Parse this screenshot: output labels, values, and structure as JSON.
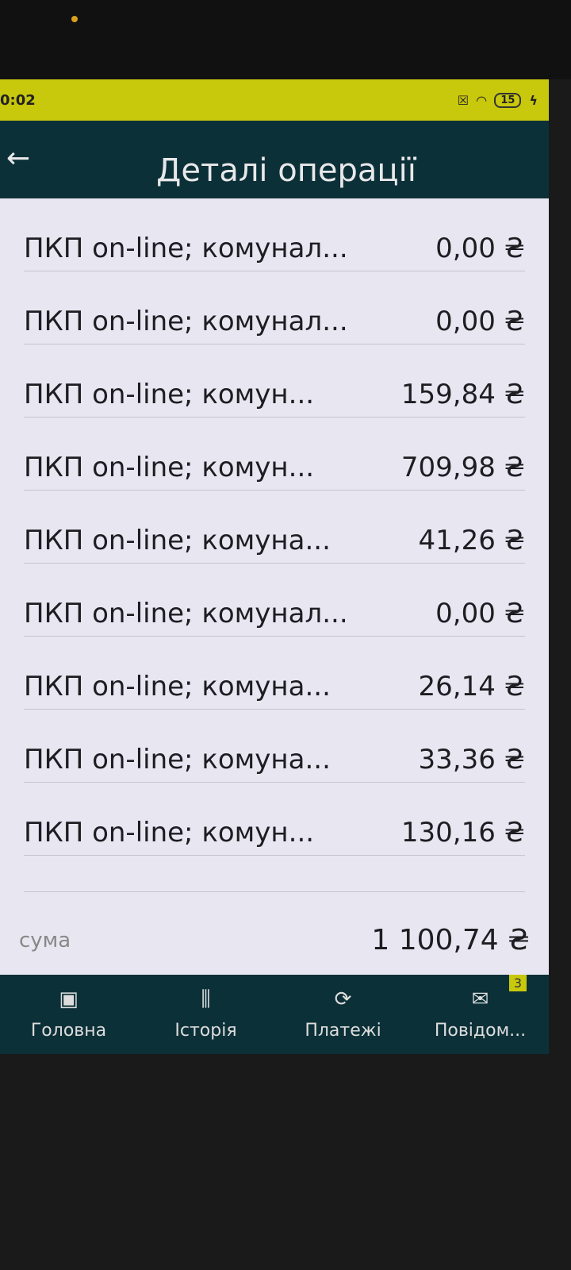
{
  "status_bar": {
    "time": "0:02",
    "battery": "15"
  },
  "header": {
    "title": "Деталі операції"
  },
  "rows": [
    {
      "label": "ПКП on-line; комунал...",
      "amount": "0,00 ₴"
    },
    {
      "label": "ПКП on-line; комунал...",
      "amount": "0,00 ₴"
    },
    {
      "label": "ПКП on-line; комун...",
      "amount": "159,84 ₴"
    },
    {
      "label": "ПКП on-line; комун...",
      "amount": "709,98 ₴"
    },
    {
      "label": "ПКП on-line; комуна...",
      "amount": "41,26 ₴"
    },
    {
      "label": "ПКП on-line; комунал...",
      "amount": "0,00 ₴"
    },
    {
      "label": "ПКП on-line; комуна...",
      "amount": "26,14 ₴"
    },
    {
      "label": "ПКП on-line; комуна...",
      "amount": "33,36 ₴"
    },
    {
      "label": "ПКП on-line; комун...",
      "amount": "130,16 ₴"
    }
  ],
  "summary": {
    "label": "сума",
    "value": "1 100,74 ₴"
  },
  "nav": [
    {
      "label": "Головна",
      "icon": "wallet-icon"
    },
    {
      "label": "Історія",
      "icon": "chart-icon"
    },
    {
      "label": "Платежі",
      "icon": "exchange-icon"
    },
    {
      "label": "Повідом...",
      "icon": "mail-icon",
      "badge": "3"
    }
  ],
  "colors": {
    "status_bar": "#c8c80c",
    "header": "#0c3038",
    "background": "#e8e6f0"
  }
}
